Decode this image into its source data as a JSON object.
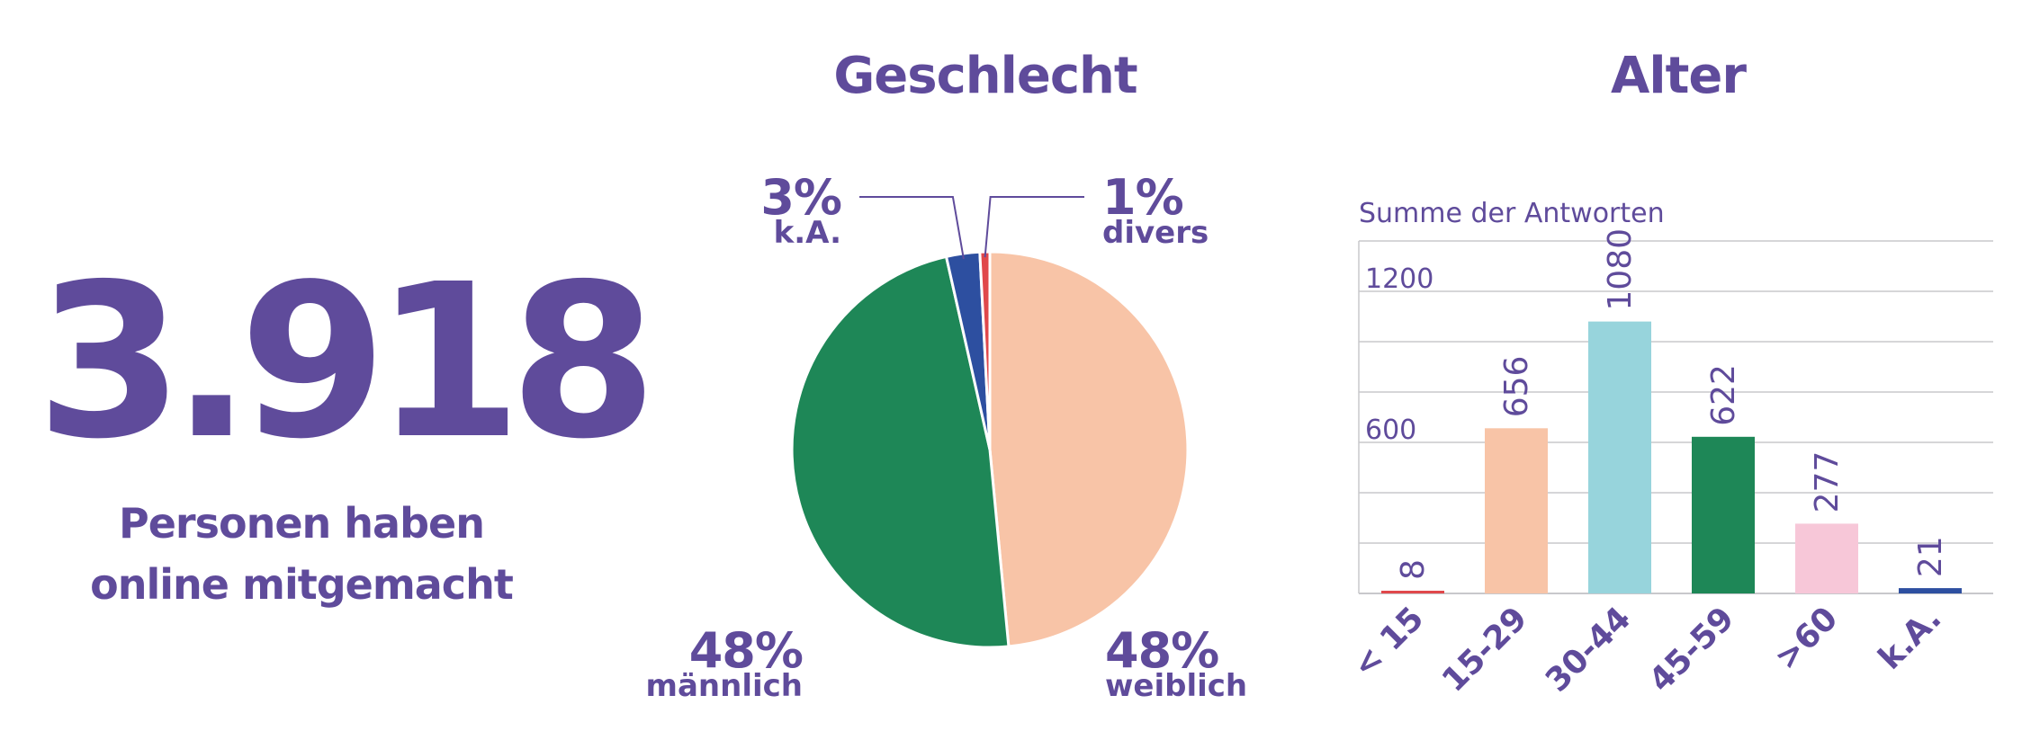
{
  "headline": {
    "number": "3.918",
    "line1": "Personen haben",
    "line2": "online mitgemacht"
  },
  "colors": {
    "purple": "#5f4b9b",
    "peach": "#f8c4a7",
    "green": "#1e8757",
    "blue": "#2d4fa0",
    "red": "#e0484b",
    "cyan": "#97d4dc",
    "pink": "#f7c7d8",
    "grid": "#c8c8cc"
  },
  "chart_data": [
    {
      "type": "pie",
      "title": "Geschlecht",
      "slices": [
        {
          "label": "weiblich",
          "value": 48,
          "pct_label": "48%",
          "color": "#f8c4a7"
        },
        {
          "label": "männlich",
          "value": 47.5,
          "pct_label": "48%",
          "color": "#1e8757"
        },
        {
          "label": "k.A.",
          "value": 2.7,
          "pct_label": "3%",
          "color": "#2d4fa0"
        },
        {
          "label": "divers",
          "value": 0.8,
          "pct_label": "1%",
          "color": "#e0484b"
        }
      ]
    },
    {
      "type": "bar",
      "title": "Alter",
      "ylabel": "Summe der Antworten",
      "ylim": [
        0,
        1400
      ],
      "yticks": [
        1200,
        600
      ],
      "grid": true,
      "categories": [
        "< 15",
        "15-29",
        "30-44",
        "45-59",
        ">60",
        "k.A."
      ],
      "values": [
        8,
        656,
        1080,
        622,
        277,
        21
      ],
      "value_labels": [
        "8",
        "656",
        "1080",
        "622",
        "277",
        "21"
      ],
      "bar_colors": [
        "#e0484b",
        "#f8c4a7",
        "#97d4dc",
        "#1e8757",
        "#f7c7d8",
        "#2d4fa0"
      ]
    }
  ]
}
